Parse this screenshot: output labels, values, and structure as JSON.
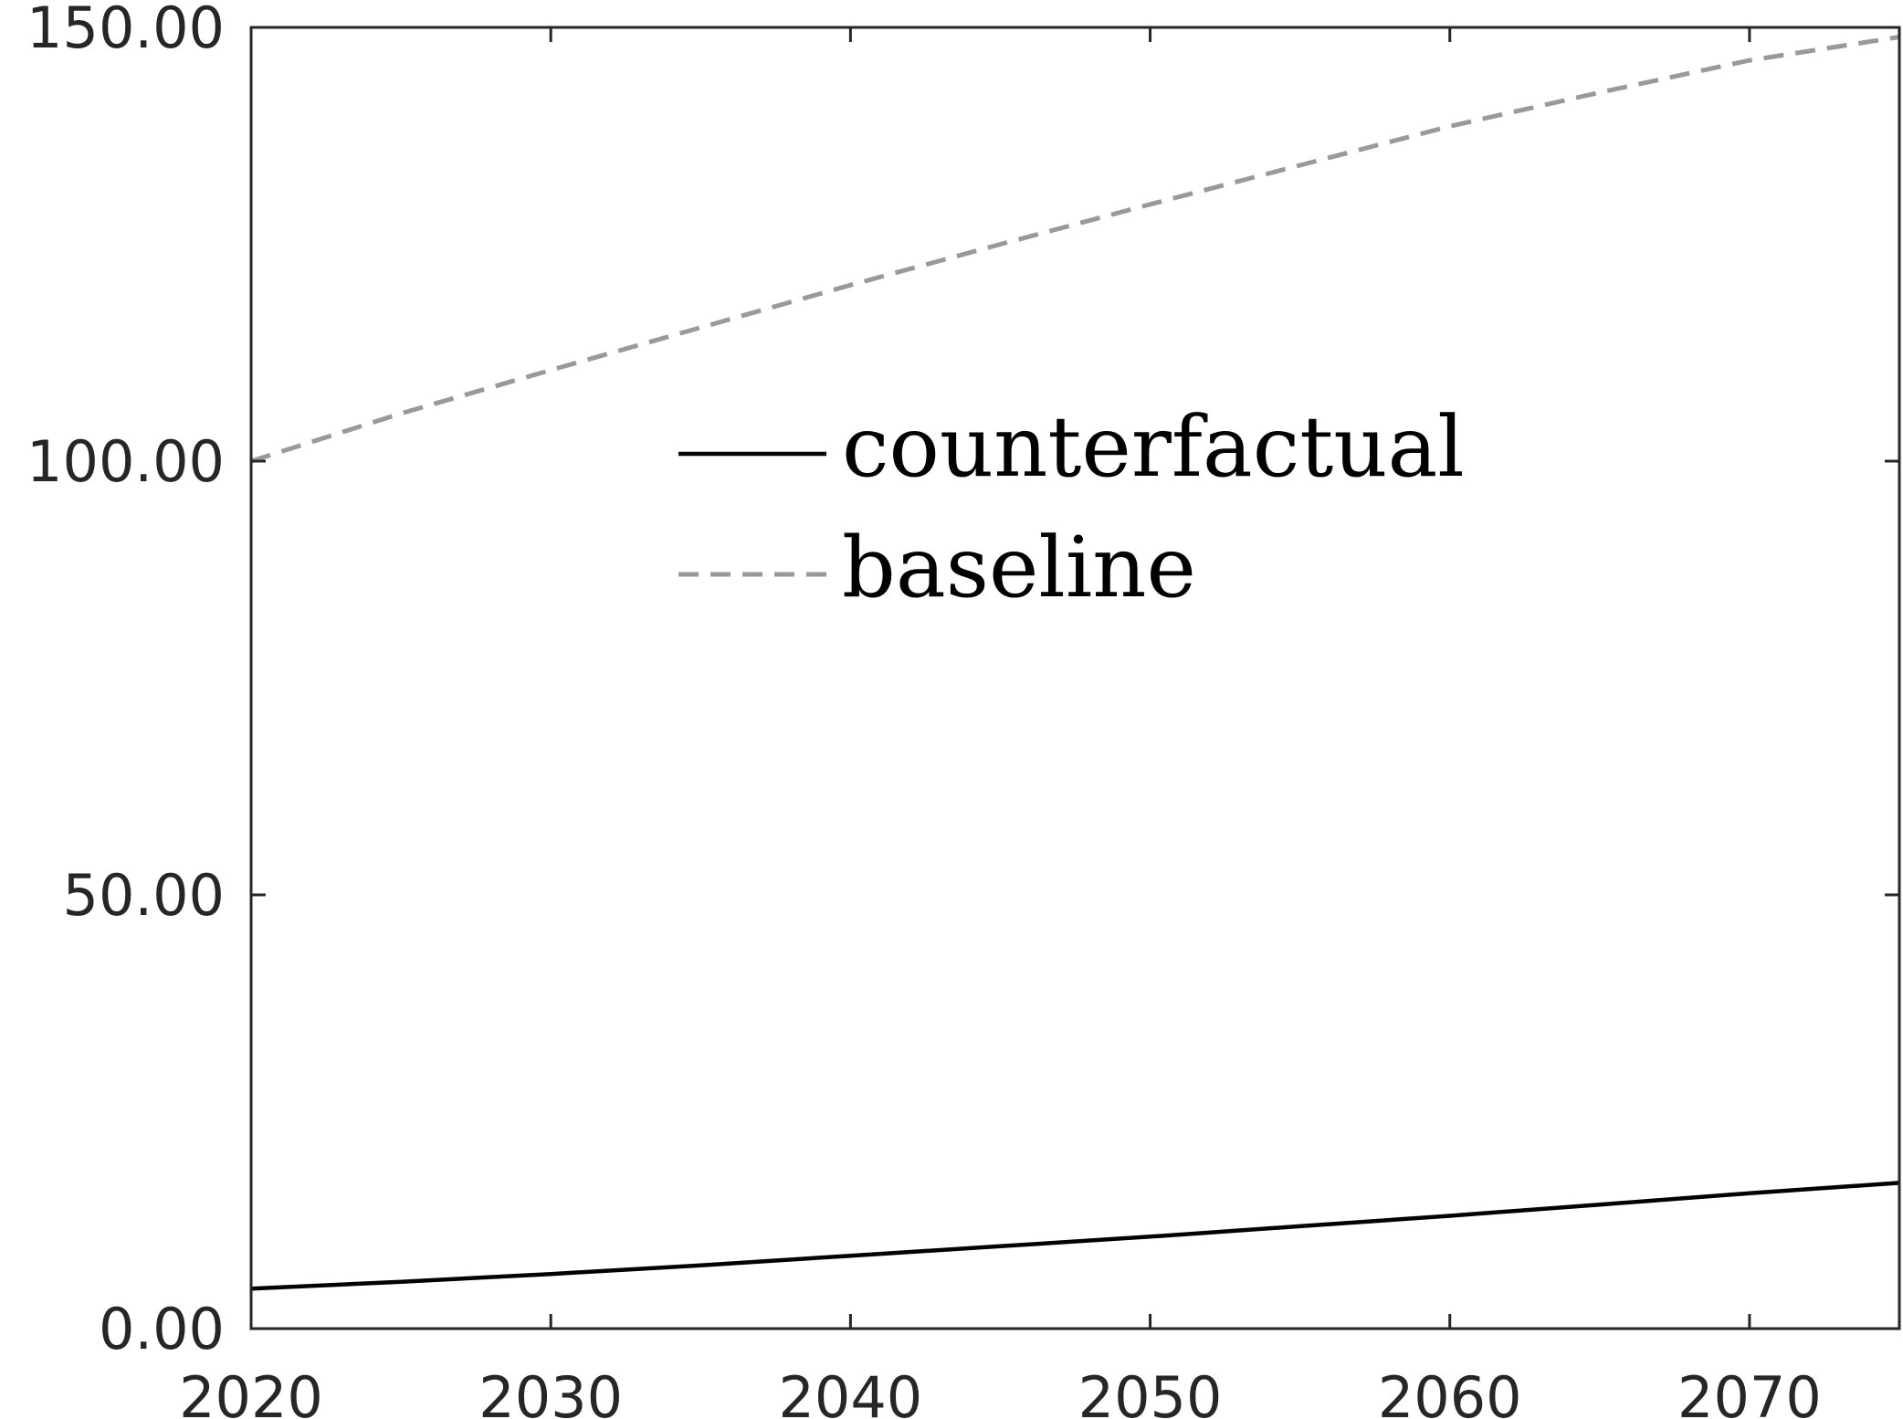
{
  "chart_data": {
    "type": "line",
    "title": "",
    "xlabel": "",
    "ylabel": "",
    "xlim": [
      2020,
      2075
    ],
    "ylim": [
      0,
      150
    ],
    "x_ticks": [
      2020,
      2030,
      2040,
      2050,
      2060,
      2070
    ],
    "x_tick_labels": [
      "2020",
      "2030",
      "2040",
      "2050",
      "2060",
      "2070"
    ],
    "y_ticks": [
      0,
      50,
      100,
      150
    ],
    "y_tick_labels": [
      "0.00",
      "50.00",
      "100.00",
      "150.00"
    ],
    "grid": false,
    "legend_position": "upper-center",
    "x": [
      2020,
      2025,
      2030,
      2035,
      2040,
      2045,
      2050,
      2055,
      2060,
      2065,
      2070,
      2075
    ],
    "series": [
      {
        "name": "counterfactual",
        "color": "#000000",
        "line_style": "solid",
        "values": [
          4.6,
          5.4,
          6.3,
          7.3,
          8.4,
          9.5,
          10.6,
          11.8,
          13.0,
          14.3,
          15.6,
          16.8
        ]
      },
      {
        "name": "baseline",
        "color": "#999999",
        "line_style": "dashed",
        "values": [
          100.0,
          105.5,
          110.5,
          115.4,
          120.3,
          125.0,
          129.6,
          134.1,
          138.6,
          142.5,
          146.2,
          148.9
        ]
      }
    ]
  }
}
